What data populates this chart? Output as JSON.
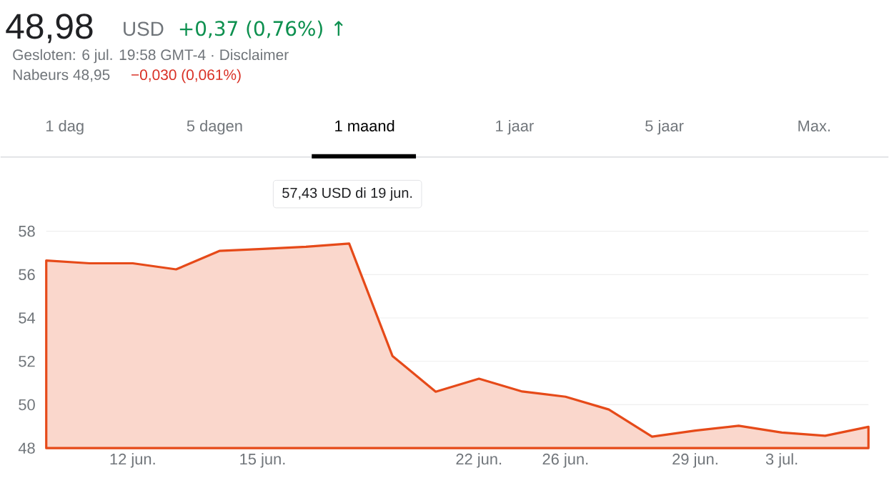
{
  "chart_data": {
    "type": "area",
    "title": "48,98",
    "annotations": [
      "USD",
      "+0,37 (0,76%) ↑",
      "Gesloten: 6 jul. 19:58 GMT-4 · Disclaimer",
      "Nabeurs 48,95",
      "−0,030 (0,061%)",
      "1 dag",
      "5 dagen",
      "1 maand",
      "1 jaar",
      "5 jaar",
      "Max.",
      "57,43 USD  di 19 jun."
    ],
    "categories": [
      null,
      null,
      "12 jun.",
      null,
      null,
      "15 jun.",
      null,
      null,
      null,
      null,
      "22 jun.",
      null,
      "26 jun.",
      null,
      null,
      "29 jun.",
      null,
      "3 jul.",
      null,
      null
    ],
    "series": [
      {
        "color": "#e64a19",
        "values": [
          56.65,
          56.52,
          56.52,
          56.24,
          57.09,
          57.18,
          57.28,
          57.43,
          52.25,
          50.6,
          51.2,
          50.61,
          50.37,
          49.78,
          48.53,
          48.81,
          49.03,
          48.72,
          48.57,
          48.98
        ]
      }
    ],
    "ylim": [
      48,
      58
    ],
    "yticks": [
      48,
      50,
      52,
      54,
      56,
      58
    ],
    "grid": "y"
  }
}
